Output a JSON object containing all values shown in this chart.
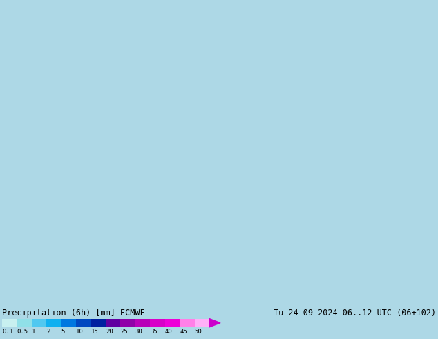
{
  "title_left": "Precipitation (6h) [mm] ECMWF",
  "title_right": "Tu 24-09-2024 06..12 UTC (06+102)",
  "colorbar_labels": [
    "0.1",
    "0.5",
    "1",
    "2",
    "5",
    "10",
    "15",
    "20",
    "25",
    "30",
    "35",
    "40",
    "45",
    "50"
  ],
  "colorbar_colors": [
    "#c8f0f0",
    "#90e0e8",
    "#50c8f0",
    "#10b0f0",
    "#0078e0",
    "#0048c0",
    "#0020a0",
    "#6000a0",
    "#9000a8",
    "#b800b8",
    "#d800c8",
    "#ee00d8",
    "#ff80e8",
    "#ffb0f8"
  ],
  "arrow_color": "#cc00cc",
  "bg_color": "#add8e6",
  "bottom_bg": "#add8e6",
  "ocean_color": "#b0d8f0",
  "land_color": "#e8dcc8",
  "mountain_color": "#c8a878",
  "border_color": "#808080",
  "number_color_sea": "#000088",
  "number_color_land": "#000000",
  "fig_width": 6.34,
  "fig_height": 4.9,
  "dpi": 100,
  "map_extent": [
    60,
    160,
    0,
    70
  ],
  "label_fontsize": 7.5,
  "num_fontsize": 5.5,
  "title_fontsize": 8.5,
  "bar_label_fontsize": 6.5
}
